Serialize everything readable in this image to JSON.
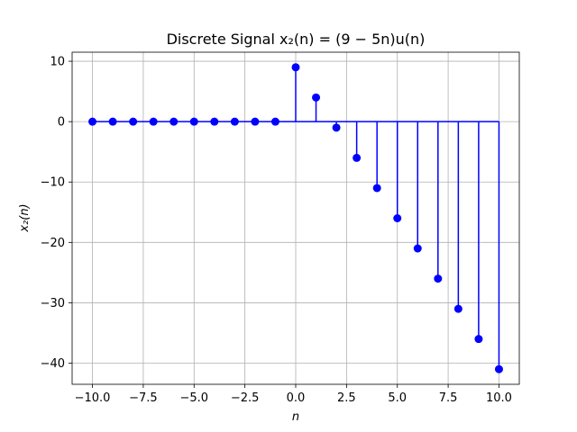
{
  "chart_data": {
    "type": "stem",
    "title": "Discrete Signal x₂(n) = (9 − 5n)u(n)",
    "xlabel": "n",
    "ylabel": "x₂(n)",
    "xlim": [
      -11,
      11
    ],
    "ylim": [
      -43.5,
      11.5
    ],
    "grid": true,
    "color": "#0000ff",
    "baseline": 0,
    "x": [
      -10,
      -9,
      -8,
      -7,
      -6,
      -5,
      -4,
      -3,
      -2,
      -1,
      0,
      1,
      2,
      3,
      4,
      5,
      6,
      7,
      8,
      9,
      10
    ],
    "y": [
      0,
      0,
      0,
      0,
      0,
      0,
      0,
      0,
      0,
      0,
      9,
      4,
      -1,
      -6,
      -11,
      -16,
      -21,
      -26,
      -31,
      -36,
      -41
    ],
    "xticks": [
      -10.0,
      -7.5,
      -5.0,
      -2.5,
      0.0,
      2.5,
      5.0,
      7.5,
      10.0
    ],
    "xtick_labels": [
      "−10.0",
      "−7.5",
      "−5.0",
      "−2.5",
      "0.0",
      "2.5",
      "5.0",
      "7.5",
      "10.0"
    ],
    "yticks": [
      10,
      0,
      -10,
      -20,
      -30,
      -40
    ],
    "ytick_labels": [
      "10",
      "0",
      "−10",
      "−20",
      "−30",
      "−40"
    ]
  }
}
